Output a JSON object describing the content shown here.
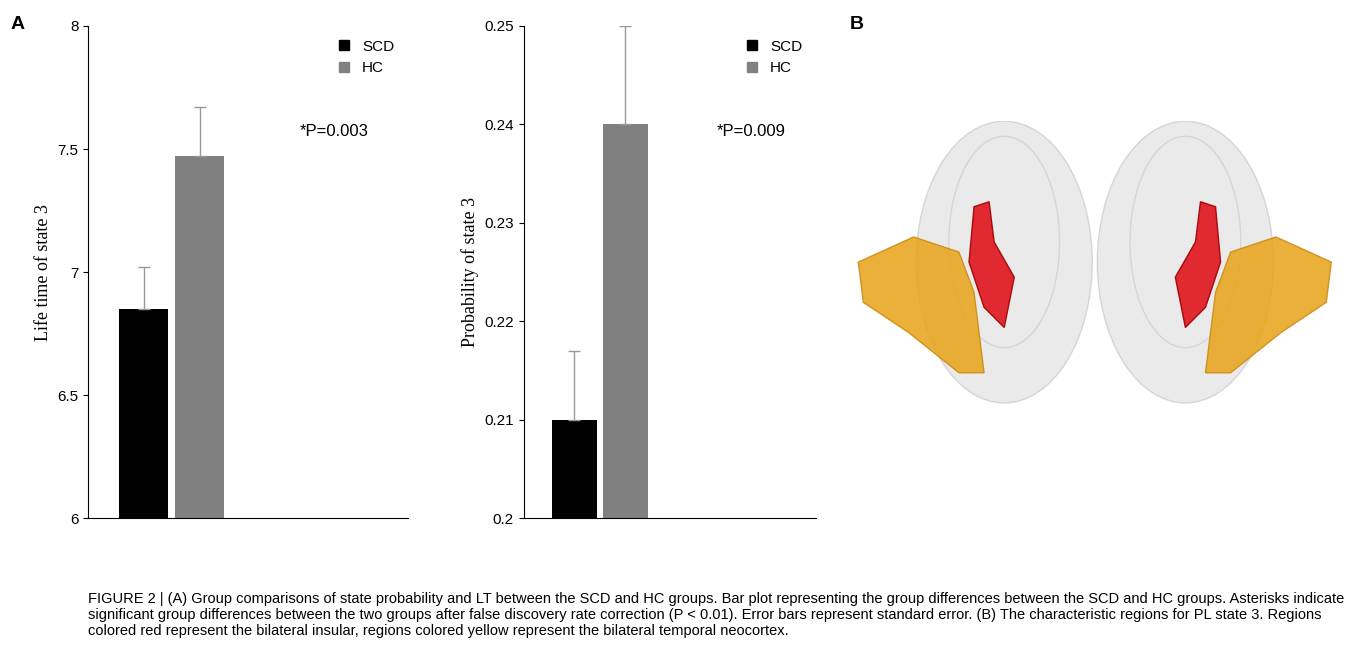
{
  "panel_labels": [
    "A",
    "B"
  ],
  "chart_data": [
    {
      "type": "bar",
      "y_label": "Life time of state 3",
      "categories": [
        null
      ],
      "series": [
        {
          "name": "SCD",
          "color": "#000000",
          "values": [
            6.85
          ],
          "errors": [
            0.17
          ]
        },
        {
          "name": "HC",
          "color": "#808080",
          "values": [
            7.47
          ],
          "errors": [
            0.2
          ]
        }
      ],
      "ylim": [
        6,
        8
      ],
      "yticks": [
        6,
        6.5,
        7,
        7.5,
        8
      ],
      "annotation": "*P=0.003",
      "legend": "upper right",
      "tick_labels": "y"
    },
    {
      "type": "bar",
      "y_label": "Probability of state 3",
      "categories": [
        null
      ],
      "series": [
        {
          "name": "SCD",
          "color": "#000000",
          "values": [
            0.21
          ],
          "errors": [
            0.007
          ]
        },
        {
          "name": "HC",
          "color": "#808080",
          "values": [
            0.24
          ],
          "errors": [
            0.01
          ]
        }
      ],
      "ylim": [
        0.2,
        0.25
      ],
      "yticks": [
        0.2,
        0.21,
        0.22,
        0.23,
        0.24,
        0.25
      ],
      "annotation": "*P=0.009",
      "legend": "upper right",
      "tick_labels": "y"
    }
  ],
  "caption": "FIGURE 2 | (A) Group comparisons of state probability and LT between the SCD and HC groups. Bar plot representing the group differences between the SCD and HC groups. Asterisks indicate significant group differences between the two groups after false discovery rate correction (P < 0.01). Error bars represent standard error. (B) The characteristic regions for PL state 3. Regions colored red represent the bilateral insular, regions colored yellow represent the bilateral temporal neocortex."
}
